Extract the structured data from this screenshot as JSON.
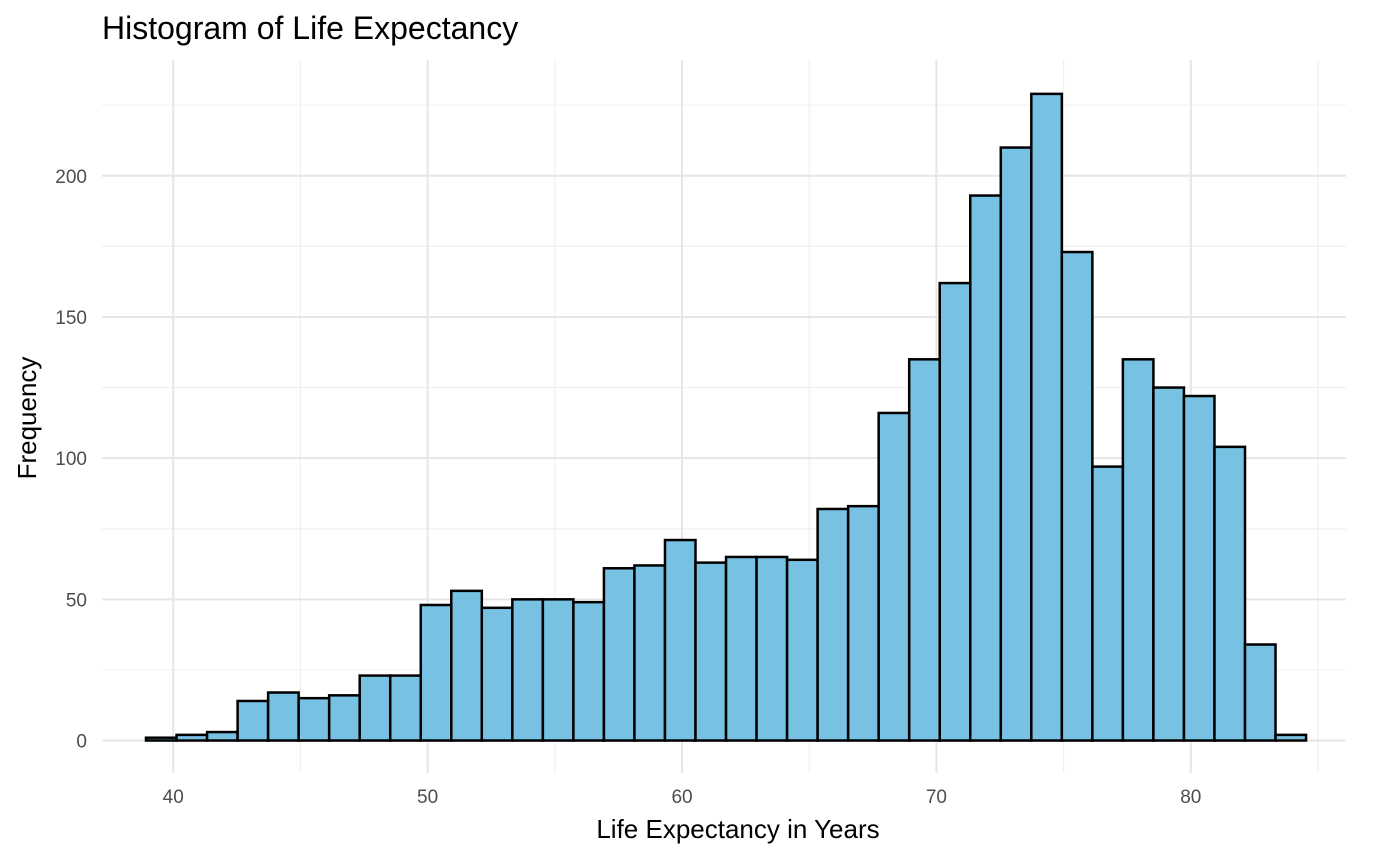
{
  "chart_data": {
    "type": "bar",
    "title": "Histogram of Life Expectancy",
    "xlabel": "Life Expectancy in Years",
    "ylabel": "Frequency",
    "xlim": [
      37.2,
      86.1
    ],
    "ylim": [
      -11.5,
      241
    ],
    "x_ticks": [
      40,
      50,
      60,
      70,
      80
    ],
    "y_ticks": [
      0,
      50,
      100,
      150,
      200
    ],
    "bin_width": 1.2,
    "bin_start": 38.93,
    "values": [
      1,
      2,
      3,
      14,
      17,
      15,
      16,
      23,
      23,
      48,
      53,
      47,
      50,
      50,
      49,
      61,
      62,
      71,
      63,
      65,
      65,
      64,
      82,
      83,
      116,
      135,
      162,
      193,
      210,
      229,
      173,
      97,
      135,
      125,
      122,
      104,
      34,
      2
    ],
    "bar_fill": "#77c1e3",
    "bar_outline": "#000000",
    "grid": true
  }
}
